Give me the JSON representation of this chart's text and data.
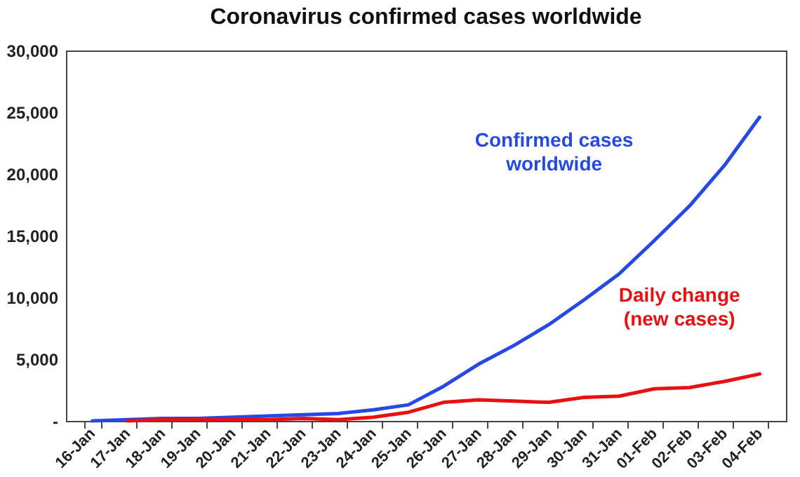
{
  "chart_data": {
    "type": "line",
    "title": "Coronavirus confirmed cases worldwide",
    "categories": [
      "16-Jan",
      "17-Jan",
      "18-Jan",
      "19-Jan",
      "20-Jan",
      "21-Jan",
      "22-Jan",
      "23-Jan",
      "24-Jan",
      "25-Jan",
      "26-Jan",
      "27-Jan",
      "28-Jan",
      "29-Jan",
      "30-Jan",
      "31-Jan",
      "01-Feb",
      "02-Feb",
      "03-Feb",
      "04-Feb"
    ],
    "series": [
      {
        "name": "Confirmed cases worldwide",
        "color": "#2649e6",
        "values": [
          0,
          100,
          200,
          200,
          300,
          400,
          500,
          600,
          900,
          1300,
          2800,
          4600,
          6100,
          7800,
          9800,
          11900,
          14600,
          17400,
          20700,
          24600
        ]
      },
      {
        "name": "Daily change (new cases)",
        "color": "#e81010",
        "values": [
          null,
          0,
          100,
          100,
          100,
          100,
          200,
          100,
          300,
          700,
          1500,
          1700,
          1600,
          1500,
          1900,
          2000,
          2600,
          2700,
          3200,
          3800
        ]
      }
    ],
    "ylim": [
      0,
      30000
    ],
    "yticks": [
      {
        "value": 0,
        "label": "-"
      },
      {
        "value": 5000,
        "label": "5,000"
      },
      {
        "value": 10000,
        "label": "10,000"
      },
      {
        "value": 15000,
        "label": "15,000"
      },
      {
        "value": 20000,
        "label": "20,000"
      },
      {
        "value": 25000,
        "label": "25,000"
      },
      {
        "value": 30000,
        "label": "30,000"
      }
    ],
    "grid": false,
    "legend": false,
    "marker": "none",
    "line_style": "solid"
  }
}
